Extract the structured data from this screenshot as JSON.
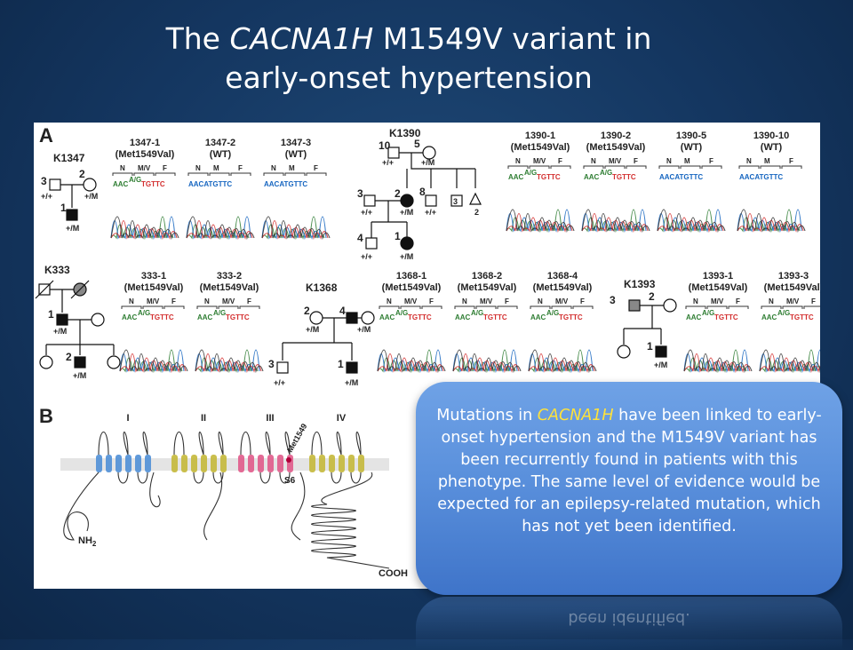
{
  "slide": {
    "title_pre": "The ",
    "title_gene": "CACNA1H",
    "title_post": " M1549V variant in",
    "title_line2": "early-onset hypertension"
  },
  "figure": {
    "panel_a": "A",
    "panel_b": "B",
    "families": [
      {
        "id": "K1347",
        "tracks": [
          {
            "label": "1347-1",
            "geno": "(Met1549Val)"
          },
          {
            "label": "1347-2",
            "geno": "(WT)"
          },
          {
            "label": "1347-3",
            "geno": "(WT)"
          }
        ]
      },
      {
        "id": "K1390",
        "tracks": [
          {
            "label": "1390-1",
            "geno": "(Met1549Val)"
          },
          {
            "label": "1390-2",
            "geno": "(Met1549Val)"
          },
          {
            "label": "1390-5",
            "geno": "(WT)"
          },
          {
            "label": "1390-10",
            "geno": "(WT)"
          }
        ]
      },
      {
        "id": "K333",
        "tracks": [
          {
            "label": "333-1",
            "geno": "(Met1549Val)"
          },
          {
            "label": "333-2",
            "geno": "(Met1549Val)"
          }
        ]
      },
      {
        "id": "K1368",
        "tracks": [
          {
            "label": "1368-1",
            "geno": "(Met1549Val)"
          },
          {
            "label": "1368-2",
            "geno": "(Met1549Val)"
          },
          {
            "label": "1368-4",
            "geno": "(Met1549Val)"
          }
        ]
      },
      {
        "id": "K1393",
        "tracks": [
          {
            "label": "1393-1",
            "geno": "(Met1549Val)"
          },
          {
            "label": "1393-3",
            "geno": "(Met1549Val)"
          }
        ]
      }
    ],
    "seq_header": {
      "n": "N",
      "mv": "M/V",
      "f": "F"
    },
    "seq_mut": {
      "pre": "AAC",
      "het": "A/G",
      "post": "TGTTC"
    },
    "seq_wt": "AACATGTTC",
    "pedigree": {
      "het": "+/M",
      "wt": "+/+",
      "k1347_n": [
        "3",
        "2",
        "1"
      ],
      "k1390_n": [
        "10",
        "5",
        "3",
        "2",
        "8",
        "3",
        "2",
        "4",
        "1"
      ],
      "k333_n": [
        "1",
        "2"
      ],
      "k1368_n": [
        "2",
        "4",
        "3",
        "1"
      ],
      "k1393_n": [
        "3",
        "2",
        "1"
      ]
    },
    "domains": [
      "I",
      "II",
      "III",
      "IV"
    ],
    "met": "Met1549",
    "s6": "S6",
    "nh2": "NH",
    "nh2_sub": "2",
    "cooh": "COOH"
  },
  "callout": {
    "pre": "Mutations in ",
    "gene": "CACNA1H",
    "post": " have been linked to early-onset hypertension and the M1549V variant has been recurrently found in patients with this phenotype. The same level of evidence would be expected for an epilepsy-related mutation, which has not yet been identified.",
    "reflection": "been identified."
  },
  "colors": {
    "background": "#143660",
    "callout": "#5a90dc",
    "highlight": "#ffe23a",
    "domain_i": "#4f8fd6",
    "domain_ii": "#c4b83a",
    "domain_iii": "#e05a8a",
    "domain_iv": "#c4b83a"
  }
}
